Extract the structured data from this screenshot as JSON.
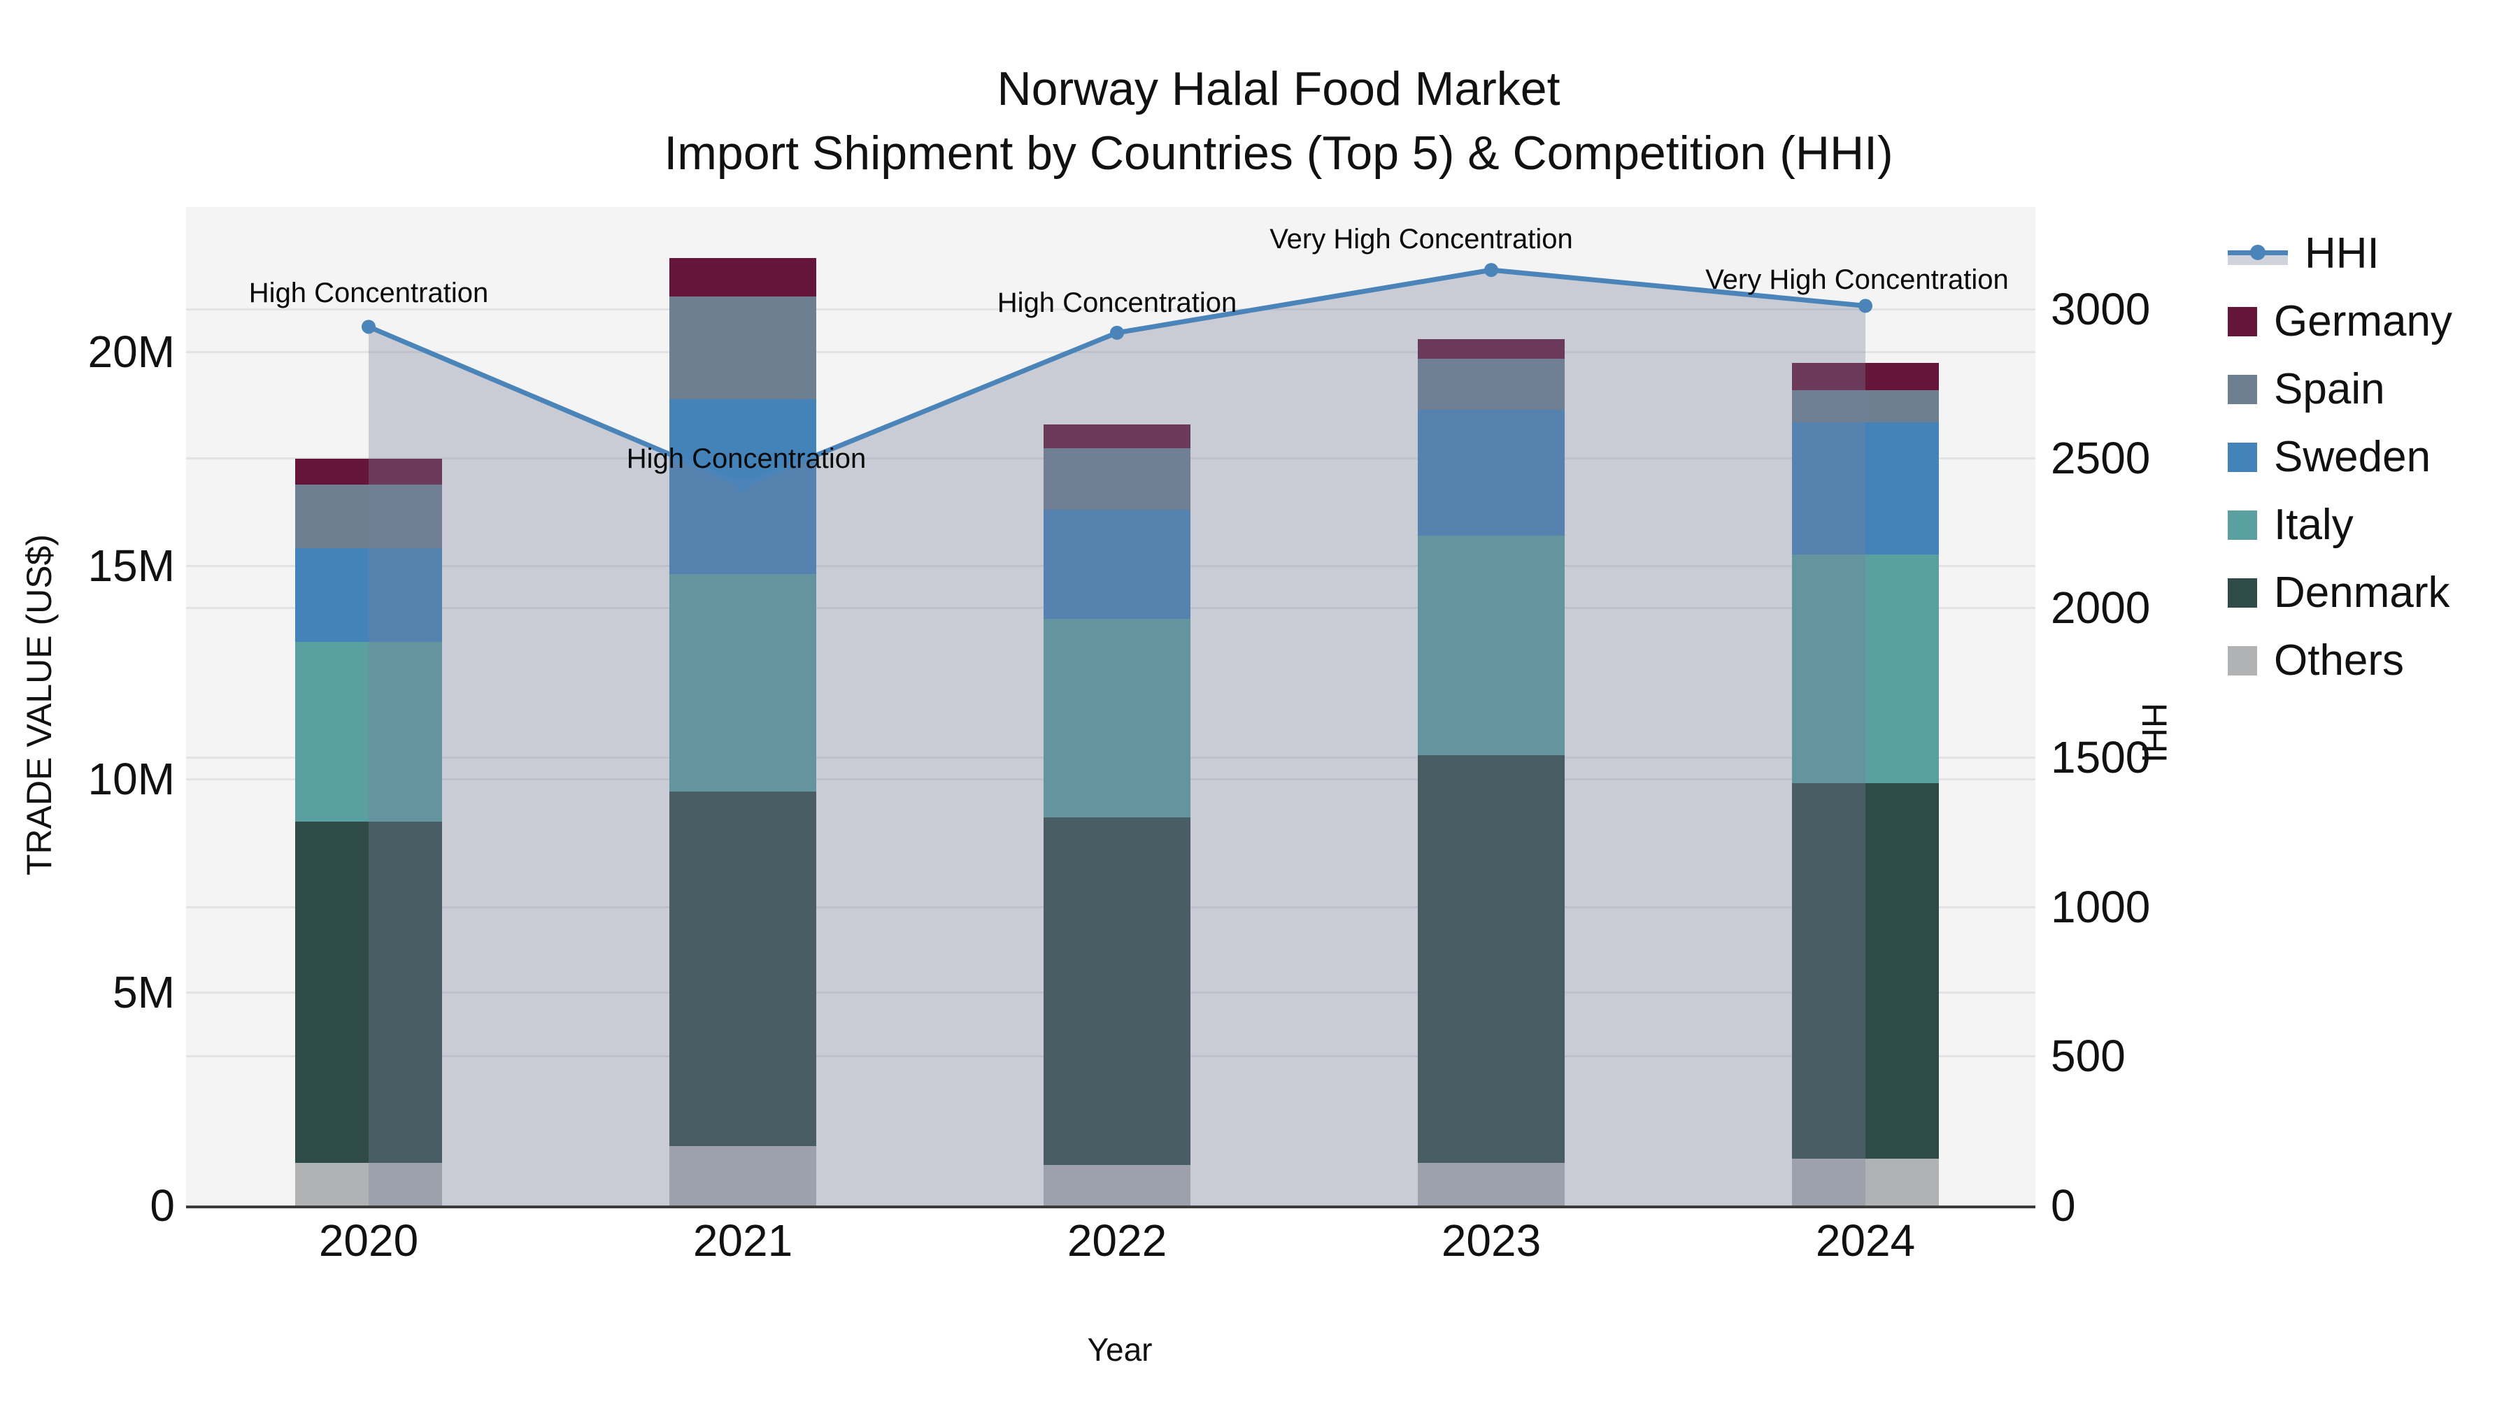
{
  "title": {
    "line1": "Norway Halal Food Market",
    "line2": "Import Shipment by Countries (Top 5) & Competition (HHI)"
  },
  "axes": {
    "left": {
      "title": "TRADE VALUE (US$)",
      "tick_labels": [
        "0",
        "5M",
        "10M",
        "15M",
        "20M"
      ],
      "tick_values": [
        0,
        5,
        10,
        15,
        20
      ]
    },
    "right": {
      "title": "HHI",
      "tick_labels": [
        "0",
        "500",
        "1000",
        "1500",
        "2000",
        "2500",
        "3000"
      ],
      "tick_values": [
        0,
        500,
        1000,
        1500,
        2000,
        2500,
        3000
      ]
    },
    "x": {
      "title": "Year"
    }
  },
  "chart_data": {
    "type": "combo",
    "subtypes": [
      "stacked-bar",
      "line-area"
    ],
    "categories": [
      "2020",
      "2021",
      "2022",
      "2023",
      "2024"
    ],
    "bar_value_unit": "million US$ (trade value)",
    "series": [
      {
        "name": "Others",
        "color": "#b1b2b4",
        "values": [
          1.0,
          1.4,
          0.95,
          1.0,
          1.1
        ]
      },
      {
        "name": "Denmark",
        "color": "#2f4b48",
        "values": [
          8.0,
          8.3,
          8.15,
          9.55,
          8.8
        ]
      },
      {
        "name": "Italy",
        "color": "#5aa0a1",
        "values": [
          4.2,
          5.1,
          4.65,
          5.15,
          5.35
        ]
      },
      {
        "name": "Sweden",
        "color": "#4383ba",
        "values": [
          2.2,
          4.1,
          2.55,
          2.95,
          3.1
        ]
      },
      {
        "name": "Spain",
        "color": "#6e7f91",
        "values": [
          1.5,
          2.4,
          1.45,
          1.2,
          0.75
        ]
      },
      {
        "name": "Germany",
        "color": "#641539",
        "values": [
          0.6,
          0.9,
          0.55,
          0.45,
          0.65
        ]
      }
    ],
    "bar_totals": [
      17.5,
      22.2,
      18.3,
      20.3,
      19.75
    ],
    "line_series": {
      "name": "HHI",
      "color": "#4a84b8",
      "area_fill": "rgba(120,130,155,0.35)",
      "values": [
        2940,
        2410,
        2920,
        3130,
        3010
      ]
    },
    "annotations": [
      {
        "category": "2020",
        "text": "High Concentration"
      },
      {
        "category": "2021",
        "text": "High Concentration"
      },
      {
        "category": "2022",
        "text": "High Concentration"
      },
      {
        "category": "2023",
        "text": "Very High Concentration"
      },
      {
        "category": "2024",
        "text": "Very High Concentration"
      }
    ],
    "xlabel": "Year",
    "ylabel_left": "TRADE VALUE (US$)",
    "ylabel_right": "HHI",
    "ylim_left": [
      0,
      23.4
    ],
    "ylim_right": [
      0,
      3340
    ],
    "grid": true,
    "legend_position": "right"
  },
  "legend": {
    "items": [
      {
        "label": "HHI",
        "type": "line",
        "color": "#4a84b8"
      },
      {
        "label": "Germany",
        "type": "swatch",
        "color": "#641539"
      },
      {
        "label": "Spain",
        "type": "swatch",
        "color": "#6e7f91"
      },
      {
        "label": "Sweden",
        "type": "swatch",
        "color": "#4383ba"
      },
      {
        "label": "Italy",
        "type": "swatch",
        "color": "#5aa0a1"
      },
      {
        "label": "Denmark",
        "type": "swatch",
        "color": "#2f4b48"
      },
      {
        "label": "Others",
        "type": "swatch",
        "color": "#b1b2b4"
      }
    ]
  },
  "colors": {
    "figure_bg": "#ffffff",
    "plot_bg": "#f4f4f5",
    "grid": "#e3e3e5",
    "axis_line": "#3b3b3b",
    "text": "#111111",
    "hhi_line": "#4a84b8",
    "hhi_area": "rgba(120,130,155,0.35)"
  }
}
